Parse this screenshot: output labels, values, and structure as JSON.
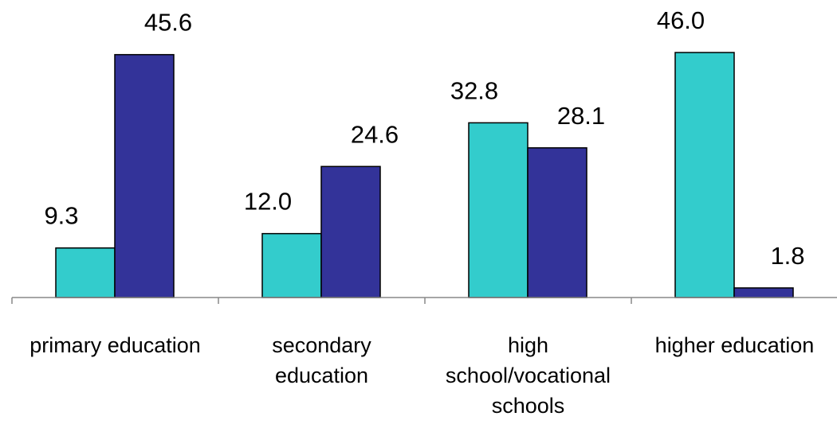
{
  "chart_data": {
    "type": "bar",
    "categories": [
      [
        "primary education"
      ],
      [
        "secondary",
        "education"
      ],
      [
        "high",
        "school/vocational",
        "schools"
      ],
      [
        "higher education"
      ]
    ],
    "series": [
      {
        "values": [
          9.3,
          12.0,
          32.8,
          46.0
        ],
        "labels": [
          "9.3",
          "12.0",
          "32.8",
          "46.0"
        ],
        "color": "#33CCCC"
      },
      {
        "values": [
          45.6,
          24.6,
          28.1,
          1.8
        ],
        "labels": [
          "45.6",
          "24.6",
          "28.1",
          "1.8"
        ],
        "color": "#333399"
      }
    ],
    "ylim": [
      0,
      46
    ],
    "grid": false,
    "legend": "none",
    "title": "",
    "xlabel": "",
    "ylabel": ""
  }
}
